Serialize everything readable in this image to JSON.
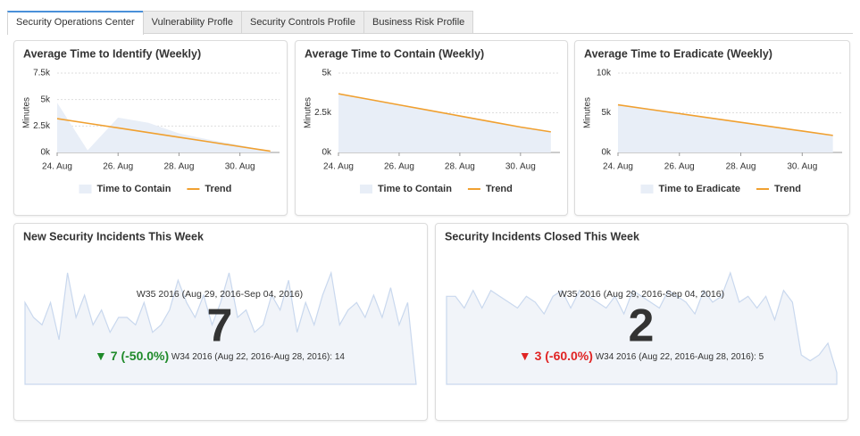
{
  "tabs": [
    "Security Operations Center",
    "Vulnerability Profle",
    "Security Controls Profile",
    "Business Risk Profile"
  ],
  "chart_data": [
    {
      "type": "line",
      "title": "Average Time to Identify (Weekly)",
      "y_label": "Minutes",
      "x": [
        24,
        25,
        26,
        27,
        28,
        29,
        30,
        31
      ],
      "xlim": [
        24,
        31.3
      ],
      "xticks": [
        {
          "value": 24,
          "label": "24. Aug"
        },
        {
          "value": 26,
          "label": "26. Aug"
        },
        {
          "value": 28,
          "label": "28. Aug"
        },
        {
          "value": 30,
          "label": "30. Aug"
        }
      ],
      "ylim": [
        0,
        7500
      ],
      "yticks": [
        {
          "value": 0,
          "label": "0k"
        },
        {
          "value": 2500,
          "label": "2.5k"
        },
        {
          "value": 5000,
          "label": "5k"
        },
        {
          "value": 7500,
          "label": "7.5k"
        }
      ],
      "grid": true,
      "series": [
        {
          "name": "Time to Contain",
          "kind": "area",
          "color": "#e8eef7",
          "values": [
            4700,
            200,
            3300,
            2800,
            1800,
            1200,
            700,
            100
          ]
        },
        {
          "name": "Trend",
          "kind": "line",
          "color": "#f0a030",
          "values": [
            3200,
            2760,
            2320,
            1880,
            1440,
            1000,
            560,
            120
          ]
        }
      ]
    },
    {
      "type": "line",
      "title": "Average Time to Contain (Weekly)",
      "y_label": "Minutes",
      "x": [
        24,
        25,
        26,
        27,
        28,
        29,
        30,
        31
      ],
      "xlim": [
        24,
        31.3
      ],
      "xticks": [
        {
          "value": 24,
          "label": "24. Aug"
        },
        {
          "value": 26,
          "label": "26. Aug"
        },
        {
          "value": 28,
          "label": "28. Aug"
        },
        {
          "value": 30,
          "label": "30. Aug"
        }
      ],
      "ylim": [
        0,
        5000
      ],
      "yticks": [
        {
          "value": 0,
          "label": "0k"
        },
        {
          "value": 2500,
          "label": "2.5k"
        },
        {
          "value": 5000,
          "label": "5k"
        }
      ],
      "grid": true,
      "series": [
        {
          "name": "Time to Contain",
          "kind": "area",
          "color": "#e8eef7",
          "values": [
            3700,
            3350,
            3000,
            2650,
            2300,
            1950,
            1600,
            1300
          ]
        },
        {
          "name": "Trend",
          "kind": "line",
          "color": "#f0a030",
          "values": [
            3700,
            3350,
            3000,
            2650,
            2300,
            1950,
            1600,
            1300
          ]
        }
      ]
    },
    {
      "type": "line",
      "title": "Average Time to Eradicate (Weekly)",
      "y_label": "Minutes",
      "x": [
        24,
        25,
        26,
        27,
        28,
        29,
        30,
        31
      ],
      "xlim": [
        24,
        31.3
      ],
      "xticks": [
        {
          "value": 24,
          "label": "24. Aug"
        },
        {
          "value": 26,
          "label": "26. Aug"
        },
        {
          "value": 28,
          "label": "28. Aug"
        },
        {
          "value": 30,
          "label": "30. Aug"
        }
      ],
      "ylim": [
        0,
        10000
      ],
      "yticks": [
        {
          "value": 0,
          "label": "0k"
        },
        {
          "value": 5000,
          "label": "5k"
        },
        {
          "value": 10000,
          "label": "10k"
        }
      ],
      "grid": true,
      "series": [
        {
          "name": "Time to Eradicate",
          "kind": "area",
          "color": "#e8eef7",
          "values": [
            6000,
            5450,
            4900,
            4350,
            3800,
            3250,
            2700,
            2150
          ]
        },
        {
          "name": "Trend",
          "kind": "line",
          "color": "#f0a030",
          "values": [
            6000,
            5450,
            4900,
            4350,
            3800,
            3250,
            2700,
            2150
          ]
        }
      ]
    },
    {
      "type": "area",
      "title": "New Security Incidents This Week",
      "period": "W35 2016 (Aug 29, 2016-Sep 04, 2016)",
      "value": 7,
      "change": "7 (-50.0%)",
      "change_color": "#1f8a2a",
      "comparison": "W34 2016 (Aug 22, 2016-Aug 28, 2016): 14",
      "color": "#c9d8ee",
      "values": [
        55,
        45,
        40,
        55,
        30,
        75,
        45,
        60,
        40,
        50,
        35,
        45,
        45,
        40,
        55,
        35,
        40,
        50,
        70,
        55,
        45,
        60,
        40,
        55,
        75,
        45,
        50,
        35,
        40,
        60,
        50,
        70,
        35,
        55,
        40,
        60,
        75,
        40,
        50,
        55,
        45,
        60,
        45,
        65,
        40,
        55,
        0
      ]
    },
    {
      "type": "area",
      "title": "Security Incidents Closed This Week",
      "period": "W35 2016 (Aug 29, 2016-Sep 04, 2016)",
      "value": 2,
      "change": "3 (-60.0%)",
      "change_color": "#e02424",
      "comparison": "W34 2016 (Aug 22, 2016-Aug 28, 2016): 5",
      "color": "#c9d8ee",
      "values": [
        75,
        75,
        65,
        80,
        65,
        80,
        75,
        70,
        65,
        75,
        70,
        60,
        75,
        80,
        65,
        80,
        75,
        70,
        65,
        75,
        60,
        80,
        75,
        70,
        65,
        80,
        75,
        70,
        60,
        80,
        70,
        75,
        95,
        70,
        75,
        65,
        75,
        55,
        80,
        70,
        25,
        20,
        25,
        35,
        10
      ]
    }
  ]
}
